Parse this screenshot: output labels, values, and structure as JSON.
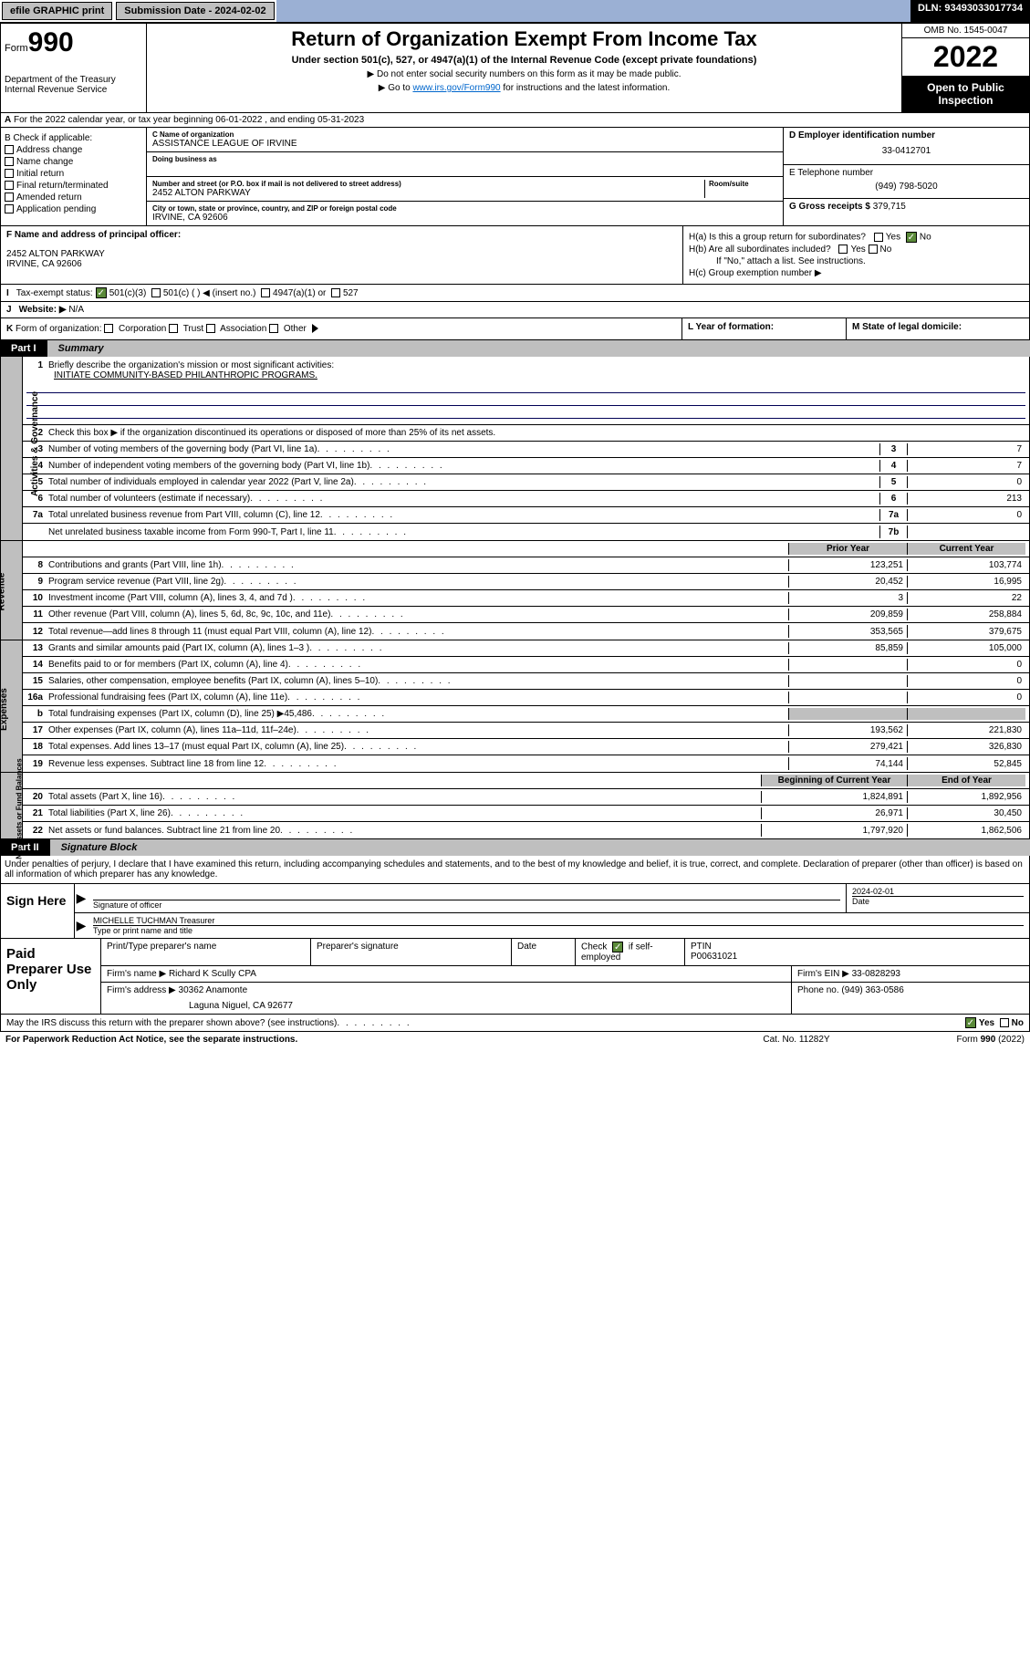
{
  "topbar": {
    "efile": "efile GRAPHIC print",
    "sub_label": "Submission Date - 2024-02-02",
    "dln": "DLN: 93493033017734"
  },
  "header": {
    "form_word": "Form",
    "form_no": "990",
    "dept": "Department of the Treasury Internal Revenue Service",
    "title": "Return of Organization Exempt From Income Tax",
    "sub": "Under section 501(c), 527, or 4947(a)(1) of the Internal Revenue Code (except private foundations)",
    "note1": "▶ Do not enter social security numbers on this form as it may be made public.",
    "note2_pre": "▶ Go to ",
    "note2_link": "www.irs.gov/Form990",
    "note2_post": " for instructions and the latest information.",
    "omb": "OMB No. 1545-0047",
    "year": "2022",
    "open": "Open to Public Inspection"
  },
  "row_a": "For the 2022 calendar year, or tax year beginning 06-01-2022   , and ending 05-31-2023",
  "section_b": {
    "title": "B Check if applicable:",
    "opts": [
      "Address change",
      "Name change",
      "Initial return",
      "Final return/terminated",
      "Amended return",
      "Application pending"
    ]
  },
  "section_c": {
    "name_label": "C Name of organization",
    "name": "ASSISTANCE LEAGUE OF IRVINE",
    "dba_label": "Doing business as",
    "street_label": "Number and street (or P.O. box if mail is not delivered to street address)",
    "room_label": "Room/suite",
    "street": "2452 ALTON PARKWAY",
    "city_label": "City or town, state or province, country, and ZIP or foreign postal code",
    "city": "IRVINE, CA  92606"
  },
  "section_d": {
    "label": "D Employer identification number",
    "val": "33-0412701"
  },
  "section_e": {
    "label": "E Telephone number",
    "val": "(949) 798-5020"
  },
  "section_g": {
    "label": "G Gross receipts $",
    "val": "379,715"
  },
  "section_f": {
    "label": "F Name and address of principal officer:",
    "addr1": "2452 ALTON PARKWAY",
    "addr2": "IRVINE, CA  92606"
  },
  "section_h": {
    "a": "H(a)  Is this a group return for subordinates?",
    "b": "H(b)  Are all subordinates included?",
    "b_note": "If \"No,\" attach a list. See instructions.",
    "c": "H(c)  Group exemption number ▶",
    "yes": "Yes",
    "no": "No"
  },
  "row_i": {
    "label": "Tax-exempt status:",
    "opts": [
      "501(c)(3)",
      "501(c) (  ) ◀ (insert no.)",
      "4947(a)(1) or",
      "527"
    ]
  },
  "row_j": {
    "label": "Website: ▶",
    "val": "N/A"
  },
  "row_k": "K Form of organization:     Corporation      Trust      Association      Other ▶",
  "row_l": "L Year of formation:",
  "row_m": "M State of legal domicile:",
  "part1": {
    "tag": "Part I",
    "title": "Summary"
  },
  "sidelabels": {
    "ag": "Activities & Governance",
    "rev": "Revenue",
    "exp": "Expenses",
    "na": "Net Assets or Fund Balances"
  },
  "lines_ag": {
    "l1_text": "Briefly describe the organization's mission or most significant activities:",
    "l1_mission": "INITIATE COMMUNITY-BASED PHILANTHROPIC PROGRAMS.",
    "l2_text": "Check this box ▶     if the organization discontinued its operations or disposed of more than 25% of its net assets.",
    "l3_text": "Number of voting members of the governing body (Part VI, line 1a)",
    "l4_text": "Number of independent voting members of the governing body (Part VI, line 1b)",
    "l5_text": "Total number of individuals employed in calendar year 2022 (Part V, line 2a)",
    "l6_text": "Total number of volunteers (estimate if necessary)",
    "l7a_text": "Total unrelated business revenue from Part VIII, column (C), line 12",
    "l7b_text": "Net unrelated business taxable income from Form 990-T, Part I, line 11",
    "v3": "7",
    "v4": "7",
    "v5": "0",
    "v6": "213",
    "v7a": "0",
    "v7b": ""
  },
  "col_hdr": {
    "prior": "Prior Year",
    "curr": "Current Year",
    "boy": "Beginning of Current Year",
    "eoy": "End of Year"
  },
  "lines_rev": [
    {
      "n": "8",
      "t": "Contributions and grants (Part VIII, line 1h)",
      "p": "123,251",
      "c": "103,774"
    },
    {
      "n": "9",
      "t": "Program service revenue (Part VIII, line 2g)",
      "p": "20,452",
      "c": "16,995"
    },
    {
      "n": "10",
      "t": "Investment income (Part VIII, column (A), lines 3, 4, and 7d )",
      "p": "3",
      "c": "22"
    },
    {
      "n": "11",
      "t": "Other revenue (Part VIII, column (A), lines 5, 6d, 8c, 9c, 10c, and 11e)",
      "p": "209,859",
      "c": "258,884"
    },
    {
      "n": "12",
      "t": "Total revenue—add lines 8 through 11 (must equal Part VIII, column (A), line 12)",
      "p": "353,565",
      "c": "379,675"
    }
  ],
  "lines_exp": [
    {
      "n": "13",
      "t": "Grants and similar amounts paid (Part IX, column (A), lines 1–3 )",
      "p": "85,859",
      "c": "105,000"
    },
    {
      "n": "14",
      "t": "Benefits paid to or for members (Part IX, column (A), line 4)",
      "p": "",
      "c": "0"
    },
    {
      "n": "15",
      "t": "Salaries, other compensation, employee benefits (Part IX, column (A), lines 5–10)",
      "p": "",
      "c": "0"
    },
    {
      "n": "16a",
      "t": "Professional fundraising fees (Part IX, column (A), line 11e)",
      "p": "",
      "c": "0"
    },
    {
      "n": "b",
      "t": "Total fundraising expenses (Part IX, column (D), line 25) ▶45,486",
      "p": "GRAY",
      "c": "GRAY"
    },
    {
      "n": "17",
      "t": "Other expenses (Part IX, column (A), lines 11a–11d, 11f–24e)",
      "p": "193,562",
      "c": "221,830"
    },
    {
      "n": "18",
      "t": "Total expenses. Add lines 13–17 (must equal Part IX, column (A), line 25)",
      "p": "279,421",
      "c": "326,830"
    },
    {
      "n": "19",
      "t": "Revenue less expenses. Subtract line 18 from line 12",
      "p": "74,144",
      "c": "52,845"
    }
  ],
  "lines_na": [
    {
      "n": "20",
      "t": "Total assets (Part X, line 16)",
      "p": "1,824,891",
      "c": "1,892,956"
    },
    {
      "n": "21",
      "t": "Total liabilities (Part X, line 26)",
      "p": "26,971",
      "c": "30,450"
    },
    {
      "n": "22",
      "t": "Net assets or fund balances. Subtract line 21 from line 20",
      "p": "1,797,920",
      "c": "1,862,506"
    }
  ],
  "part2": {
    "tag": "Part II",
    "title": "Signature Block"
  },
  "sig": {
    "penalty": "Under penalties of perjury, I declare that I have examined this return, including accompanying schedules and statements, and to the best of my knowledge and belief, it is true, correct, and complete. Declaration of preparer (other than officer) is based on all information of which preparer has any knowledge.",
    "sign_here": "Sign Here",
    "sig_of_officer": "Signature of officer",
    "date_label": "Date",
    "date": "2024-02-01",
    "name": "MICHELLE TUCHMAN Treasurer",
    "name_label": "Type or print name and title"
  },
  "prep": {
    "label": "Paid Preparer Use Only",
    "h1": "Print/Type preparer's name",
    "h2": "Preparer's signature",
    "h3": "Date",
    "h4_pre": "Check",
    "h4_post": "if self-employed",
    "ptin_label": "PTIN",
    "ptin": "P00631021",
    "firm_name_label": "Firm's name   ▶",
    "firm_name": "Richard K Scully CPA",
    "firm_ein_label": "Firm's EIN ▶",
    "firm_ein": "33-0828293",
    "firm_addr_label": "Firm's address ▶",
    "firm_addr1": "30362 Anamonte",
    "firm_addr2": "Laguna Niguel, CA  92677",
    "phone_label": "Phone no.",
    "phone": "(949) 363-0586"
  },
  "footer": {
    "discuss": "May the IRS discuss this return with the preparer shown above? (see instructions)",
    "yes": "Yes",
    "no": "No",
    "pra": "For Paperwork Reduction Act Notice, see the separate instructions.",
    "cat": "Cat. No. 11282Y",
    "form": "Form 990 (2022)"
  }
}
